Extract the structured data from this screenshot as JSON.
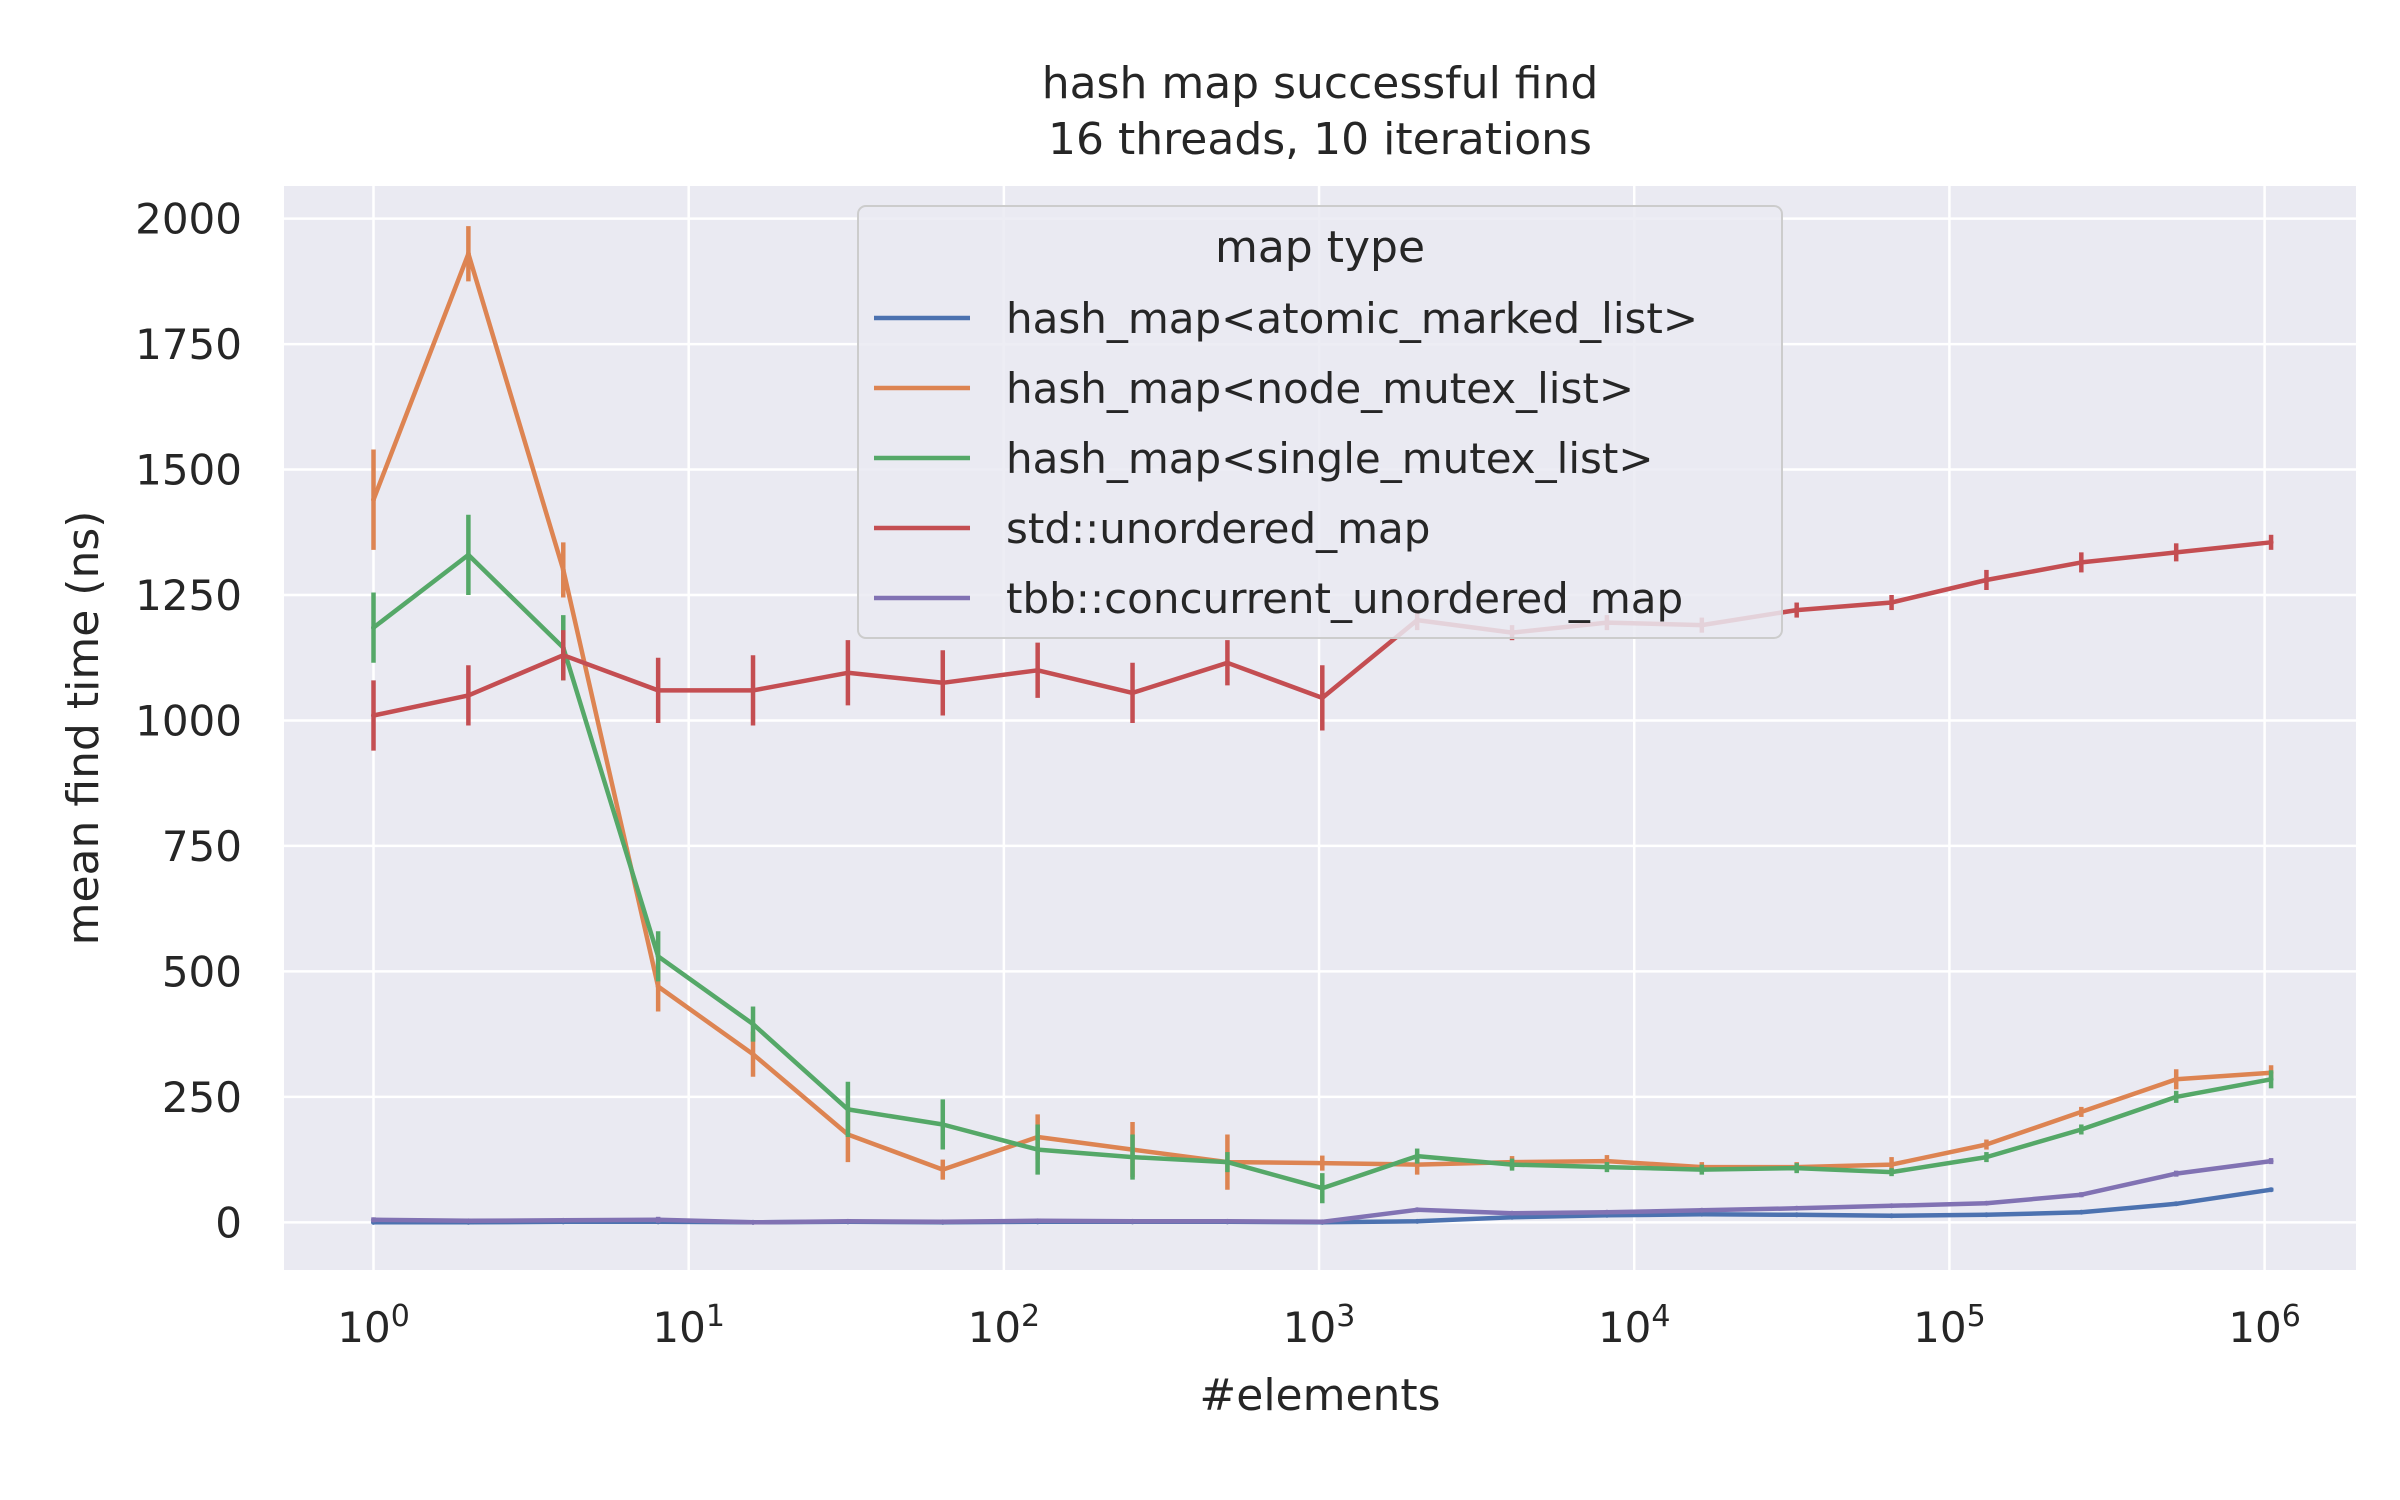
{
  "chart_data": {
    "type": "line",
    "title": "hash map successful find",
    "subtitle": "16 threads, 10 iterations",
    "xlabel": "#elements",
    "ylabel": "mean find time (ns)",
    "xscale": "log",
    "xlim": [
      0.52,
      1950000
    ],
    "ylim": [
      -95,
      2065
    ],
    "grid": true,
    "x_ticks": [
      {
        "value": 1,
        "base": "10",
        "exp": "0"
      },
      {
        "value": 10,
        "base": "10",
        "exp": "1"
      },
      {
        "value": 100,
        "base": "10",
        "exp": "2"
      },
      {
        "value": 1000,
        "base": "10",
        "exp": "3"
      },
      {
        "value": 10000,
        "base": "10",
        "exp": "4"
      },
      {
        "value": 100000,
        "base": "10",
        "exp": "5"
      },
      {
        "value": 1000000,
        "base": "10",
        "exp": "6"
      }
    ],
    "y_ticks": [
      0,
      250,
      500,
      750,
      1000,
      1250,
      1500,
      1750,
      2000
    ],
    "x": [
      1,
      2,
      4,
      8,
      16,
      32,
      64,
      128,
      256,
      512,
      1024,
      2048,
      4096,
      8192,
      16384,
      32768,
      65536,
      131072,
      262144,
      524288,
      1048576
    ],
    "legend": {
      "title": "map type",
      "position": "upper center"
    },
    "series": [
      {
        "name": "hash_map<atomic_marked_list>",
        "color": "#4c72b0",
        "values": [
          0,
          0,
          1,
          1,
          0,
          1,
          0,
          1,
          1,
          1,
          0,
          2,
          10,
          14,
          16,
          15,
          13,
          15,
          20,
          37,
          65
        ],
        "err": [
          2,
          2,
          2,
          2,
          2,
          2,
          2,
          2,
          2,
          2,
          2,
          2,
          2,
          2,
          2,
          2,
          2,
          3,
          3,
          4,
          4
        ]
      },
      {
        "name": "hash_map<node_mutex_list>",
        "color": "#dd8452",
        "values": [
          1440,
          1930,
          1300,
          470,
          335,
          175,
          105,
          170,
          145,
          120,
          118,
          115,
          120,
          122,
          110,
          110,
          115,
          155,
          220,
          285,
          298
        ],
        "err": [
          100,
          55,
          55,
          50,
          45,
          55,
          20,
          45,
          55,
          55,
          15,
          20,
          12,
          12,
          10,
          10,
          15,
          10,
          10,
          20,
          15
        ]
      },
      {
        "name": "hash_map<single_mutex_list>",
        "color": "#55a868",
        "values": [
          1185,
          1330,
          1145,
          530,
          395,
          225,
          195,
          145,
          130,
          120,
          68,
          132,
          115,
          110,
          105,
          108,
          100,
          130,
          185,
          250,
          285
        ],
        "err": [
          70,
          80,
          65,
          50,
          35,
          55,
          50,
          50,
          45,
          20,
          30,
          15,
          12,
          10,
          10,
          10,
          8,
          10,
          10,
          12,
          18
        ]
      },
      {
        "name": "std::unordered_map",
        "color": "#c44e52",
        "values": [
          1010,
          1050,
          1130,
          1060,
          1060,
          1095,
          1075,
          1100,
          1055,
          1115,
          1045,
          1200,
          1175,
          1195,
          1190,
          1220,
          1235,
          1280,
          1315,
          1335,
          1355
        ],
        "err": [
          70,
          60,
          50,
          65,
          70,
          65,
          65,
          55,
          60,
          45,
          65,
          20,
          15,
          15,
          15,
          15,
          15,
          20,
          20,
          18,
          15
        ]
      },
      {
        "name": "tbb::concurrent_unordered_map",
        "color": "#8172b3",
        "values": [
          5,
          3,
          4,
          5,
          0,
          2,
          1,
          3,
          2,
          2,
          1,
          25,
          18,
          20,
          24,
          28,
          33,
          38,
          55,
          97,
          122
        ],
        "err": [
          5,
          3,
          3,
          6,
          2,
          3,
          2,
          4,
          3,
          3,
          2,
          4,
          4,
          4,
          4,
          4,
          4,
          4,
          5,
          6,
          6
        ]
      }
    ]
  }
}
